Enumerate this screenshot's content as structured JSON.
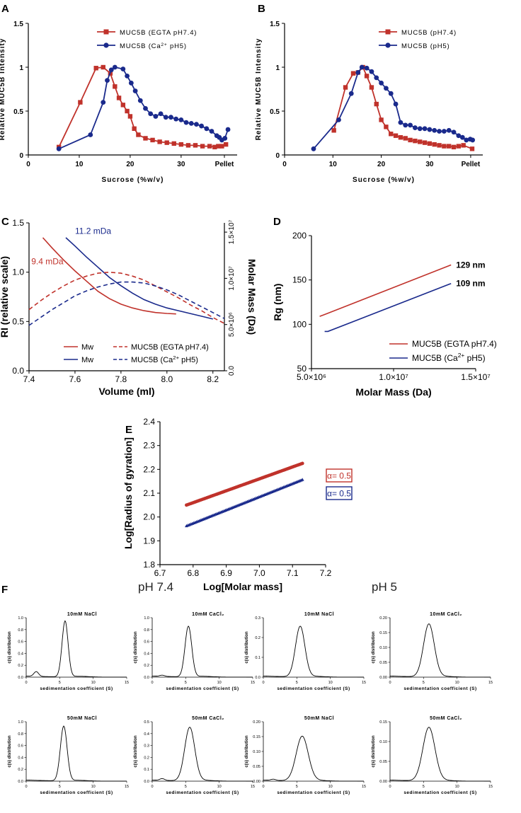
{
  "colors": {
    "red": "#c0322b",
    "blue": "#1a2a8c",
    "axis": "#000000"
  },
  "panel_f_headers": {
    "left": "pH 7.4",
    "right": "pH 5"
  },
  "chart_data": [
    {
      "id": "A",
      "panel_label": "A",
      "type": "line",
      "title": "",
      "xlabel": "Sucrose (%w/v)",
      "ylabel": "Relative MUC5B Intensity",
      "xlim": [
        0,
        41
      ],
      "ylim": [
        0,
        1.5
      ],
      "xticks": [
        0,
        10,
        20,
        30
      ],
      "xtick_extra_label": "Pellet",
      "xtick_extra_at": 38.5,
      "yticks": [
        0,
        0.5,
        1.0,
        1.5
      ],
      "legend_position": "top-center",
      "series": [
        {
          "name": "MUC5B (EGTA pH7.4)",
          "color": "red",
          "marker": "square",
          "x": [
            6,
            10.2,
            13.3,
            14.7,
            16.1,
            17,
            17.8,
            18.6,
            19.4,
            20,
            20.8,
            21.6,
            23,
            24.4,
            25.8,
            27.2,
            28.6,
            30,
            31.4,
            32.8,
            34.2,
            35.6,
            36.6,
            37.3,
            38,
            38.8
          ],
          "y": [
            0.09,
            0.6,
            0.99,
            1.0,
            0.93,
            0.78,
            0.65,
            0.57,
            0.5,
            0.44,
            0.3,
            0.23,
            0.19,
            0.17,
            0.15,
            0.14,
            0.13,
            0.12,
            0.11,
            0.11,
            0.1,
            0.1,
            0.09,
            0.1,
            0.1,
            0.12
          ]
        },
        {
          "name": "MUC5B (Ca2+ pH5)",
          "color": "blue",
          "marker": "circle",
          "x": [
            6,
            12.2,
            14.7,
            15.5,
            16.3,
            17,
            18.6,
            19.4,
            20.2,
            21,
            22,
            23,
            24,
            25,
            26,
            27,
            28,
            29,
            30,
            31,
            32,
            33,
            34,
            35,
            36,
            37,
            37.5,
            38,
            38.6,
            39.2
          ],
          "y": [
            0.07,
            0.23,
            0.6,
            0.85,
            0.97,
            1.0,
            0.98,
            0.9,
            0.82,
            0.73,
            0.62,
            0.53,
            0.47,
            0.44,
            0.47,
            0.43,
            0.43,
            0.41,
            0.4,
            0.37,
            0.36,
            0.35,
            0.33,
            0.3,
            0.27,
            0.22,
            0.2,
            0.17,
            0.19,
            0.29
          ]
        }
      ]
    },
    {
      "id": "B",
      "panel_label": "B",
      "type": "line",
      "title": "",
      "xlabel": "Sucrose (%w/v)",
      "ylabel": "Relative MUC5B Intensity",
      "xlim": [
        0,
        41
      ],
      "ylim": [
        0,
        1.5
      ],
      "xticks": [
        0,
        10,
        20,
        30
      ],
      "xtick_extra_label": "Pellet",
      "xtick_extra_at": 38.5,
      "yticks": [
        0,
        0.5,
        1.0,
        1.5
      ],
      "legend_position": "top-right",
      "series": [
        {
          "name": "MUC5B (pH7.4)",
          "color": "red",
          "marker": "square",
          "x": [
            10.2,
            12.6,
            14.2,
            15.2,
            16.2,
            17,
            18,
            19,
            20,
            21,
            22,
            23,
            24,
            25,
            26,
            27,
            28,
            29,
            30,
            31,
            32,
            33,
            34,
            35,
            36,
            37,
            38.8
          ],
          "y": [
            0.28,
            0.77,
            0.93,
            0.94,
            1.0,
            0.9,
            0.77,
            0.58,
            0.4,
            0.32,
            0.24,
            0.22,
            0.2,
            0.19,
            0.17,
            0.16,
            0.15,
            0.14,
            0.13,
            0.12,
            0.11,
            0.1,
            0.1,
            0.09,
            0.1,
            0.11,
            0.07
          ]
        },
        {
          "name": "MUC5B (pH5)",
          "color": "blue",
          "marker": "circle",
          "x": [
            6,
            11.2,
            13.8,
            15.2,
            16,
            17,
            18,
            19,
            20,
            21,
            22,
            23,
            24,
            25,
            26,
            27,
            28,
            29,
            30,
            31,
            32,
            33,
            34,
            35,
            36,
            36.8,
            37.6,
            38.4,
            38.9
          ],
          "y": [
            0.07,
            0.4,
            0.7,
            0.94,
            1.0,
            0.99,
            0.95,
            0.88,
            0.82,
            0.76,
            0.7,
            0.58,
            0.37,
            0.34,
            0.34,
            0.31,
            0.3,
            0.3,
            0.29,
            0.28,
            0.27,
            0.27,
            0.28,
            0.26,
            0.22,
            0.2,
            0.17,
            0.18,
            0.17
          ]
        }
      ]
    },
    {
      "id": "C",
      "panel_label": "C",
      "type": "line",
      "xlabel": "Volume (ml)",
      "ylabel": "RI (relative scale)",
      "y2label": "Molar Mass (Da)",
      "xlim": [
        7.4,
        8.25
      ],
      "ylim": [
        0,
        1.5
      ],
      "y2lim": [
        0,
        16000000
      ],
      "xticks": [
        7.4,
        7.6,
        7.8,
        8.0,
        8.2
      ],
      "xtick_labels": [
        "7.4",
        "7.6",
        "7.8",
        "8.0",
        "8.2"
      ],
      "yticks": [
        0,
        0.5,
        1.0,
        1.5
      ],
      "ytick_labels": [
        "0.0",
        "0.5",
        "1.0",
        "1.5"
      ],
      "y2ticks": [
        0,
        5000000,
        10000000,
        15000000
      ],
      "y2tick_labels": [
        "0.0",
        "5.0×10⁶",
        "1.0×10⁷",
        "1.5×10⁷"
      ],
      "legend_position": "bottom",
      "annotations": [
        {
          "text": "9.4 mDa",
          "color": "red",
          "x": 7.41,
          "y": 1.08
        },
        {
          "text": "11.2 mDa",
          "color": "blue",
          "x": 7.6,
          "y": 1.39
        }
      ],
      "series": [
        {
          "name": "Mw",
          "color": "red",
          "dash": false,
          "axis": "right",
          "x": [
            7.46,
            7.5,
            7.55,
            7.6,
            7.65,
            7.7,
            7.75,
            7.8,
            7.85,
            7.9,
            7.95,
            8.0,
            8.04
          ],
          "y": [
            14400000,
            13300000,
            12000000,
            10800000,
            9700000,
            8600000,
            7800000,
            7200000,
            6800000,
            6500000,
            6300000,
            6200000,
            6150000
          ]
        },
        {
          "name": "Mw",
          "color": "blue",
          "dash": false,
          "axis": "right",
          "x": [
            7.56,
            7.6,
            7.65,
            7.7,
            7.75,
            7.8,
            7.85,
            7.9,
            7.95,
            8.0,
            8.05,
            8.1,
            8.15,
            8.2
          ],
          "y": [
            14400000,
            13500000,
            12300000,
            11200000,
            10100000,
            9200000,
            8400000,
            7700000,
            7200000,
            6800000,
            6500000,
            6200000,
            5900000,
            5600000
          ]
        },
        {
          "name": "MUC5B (EGTA pH7.4)",
          "color": "red",
          "dash": true,
          "axis": "left",
          "x": [
            7.4,
            7.45,
            7.5,
            7.55,
            7.6,
            7.65,
            7.7,
            7.75,
            7.8,
            7.85,
            7.9,
            7.95,
            8.0,
            8.05,
            8.1,
            8.15,
            8.2,
            8.25
          ],
          "y": [
            0.62,
            0.71,
            0.79,
            0.86,
            0.92,
            0.96,
            0.99,
            1.0,
            0.99,
            0.96,
            0.92,
            0.86,
            0.8,
            0.74,
            0.67,
            0.61,
            0.54,
            0.48
          ]
        },
        {
          "name": "MUC5B (Ca2+ pH5)",
          "color": "blue",
          "dash": true,
          "axis": "left",
          "x": [
            7.4,
            7.45,
            7.5,
            7.55,
            7.6,
            7.65,
            7.7,
            7.75,
            7.8,
            7.85,
            7.9,
            7.95,
            8.0,
            8.05,
            8.1,
            8.15,
            8.2,
            8.25
          ],
          "y": [
            0.46,
            0.54,
            0.62,
            0.69,
            0.76,
            0.81,
            0.85,
            0.88,
            0.9,
            0.9,
            0.89,
            0.86,
            0.82,
            0.77,
            0.71,
            0.65,
            0.59,
            0.53
          ]
        }
      ]
    },
    {
      "id": "D",
      "panel_label": "D",
      "type": "line",
      "xlabel": "Molar Mass (Da)",
      "ylabel": "Rg (nm)",
      "xlim": [
        5000000,
        15000000
      ],
      "ylim": [
        50,
        200
      ],
      "xticks": [
        5000000,
        10000000,
        15000000
      ],
      "xtick_labels": [
        "5.0×10⁶",
        "1.0×10⁷",
        "1.5×10⁷"
      ],
      "yticks": [
        50,
        100,
        150,
        200
      ],
      "legend_position": "bottom-right",
      "annotations": [
        {
          "text": "129 nm",
          "color": "black",
          "series": 0
        },
        {
          "text": "109 nm",
          "color": "black",
          "series": 1
        }
      ],
      "series": [
        {
          "name": "MUC5B (EGTA pH7.4)",
          "color": "red",
          "x": [
            5500000,
            5800000,
            13500000
          ],
          "y": [
            109,
            111,
            167
          ]
        },
        {
          "name": "MUC5B (Ca2+ pH5)",
          "color": "blue",
          "x": [
            5800000,
            6000000,
            13500000
          ],
          "y": [
            92,
            92,
            146
          ]
        }
      ]
    },
    {
      "id": "E",
      "panel_label": "E",
      "type": "scatter",
      "xlabel": "Log[Molar mass]",
      "ylabel": "Log[Radius of gyration]",
      "xlim": [
        6.7,
        7.2
      ],
      "ylim": [
        1.8,
        2.4
      ],
      "xticks": [
        6.7,
        6.8,
        6.9,
        7.0,
        7.1,
        7.2
      ],
      "xtick_labels": [
        "6.7",
        "6.8",
        "6.9",
        "7.0",
        "7.1",
        "7.2"
      ],
      "yticks": [
        1.8,
        1.9,
        2.0,
        2.1,
        2.2,
        2.3,
        2.4
      ],
      "ytick_labels": [
        "1.8",
        "1.9",
        "2.0",
        "2.1",
        "2.2",
        "2.3",
        "2.4"
      ],
      "annotations": [
        {
          "text": "α= 0.5",
          "color": "red"
        },
        {
          "text": "α= 0.5",
          "color": "blue"
        }
      ],
      "series": [
        {
          "name": "MUC5B (EGTA pH7.4)",
          "color": "red",
          "x": [
            6.78,
            7.13
          ],
          "y": [
            2.05,
            2.225
          ]
        },
        {
          "name": "MUC5B (Ca2+ pH5)",
          "color": "blue",
          "x": [
            6.78,
            7.13
          ],
          "y": [
            1.963,
            2.157
          ]
        }
      ]
    }
  ],
  "sedimentation": {
    "xlabel": "sedimentation coefficient (S)",
    "ylabel": "c(s) distribution",
    "xlim": [
      0,
      15
    ],
    "xticks": [
      0,
      5,
      10,
      15
    ],
    "plots": [
      {
        "title": "10mM NaCl",
        "ymax": 1.0,
        "yticks": [
          "0.0",
          "0.2",
          "0.4",
          "0.6",
          "0.8",
          "1.0"
        ],
        "peak_x": 5.8,
        "peak_y": 0.94,
        "width": 0.45,
        "baseline_bump": 0.08
      },
      {
        "title": "10mM CaCl₂",
        "ymax": 1.0,
        "yticks": [
          "0.0",
          "0.2",
          "0.4",
          "0.6",
          "0.8",
          "1.0"
        ],
        "peak_x": 5.4,
        "peak_y": 0.85,
        "width": 0.5,
        "baseline_bump": 0.02
      },
      {
        "title": "10mM NaCl",
        "ymax": 0.3,
        "yticks": [
          "0.0",
          "0.1",
          "0.2",
          "0.3"
        ],
        "peak_x": 5.5,
        "peak_y": 0.255,
        "width": 0.7,
        "baseline_bump": 0.0
      },
      {
        "title": "10mM CaCl₂",
        "ymax": 0.2,
        "yticks": [
          "0.00",
          "0.05",
          "0.10",
          "0.15",
          "0.20"
        ],
        "peak_x": 5.8,
        "peak_y": 0.178,
        "width": 0.8,
        "baseline_bump": 0.0
      },
      {
        "title": "50mM NaCl",
        "ymax": 1.0,
        "yticks": [
          "0.0",
          "0.2",
          "0.4",
          "0.6",
          "0.8",
          "1.0"
        ],
        "peak_x": 5.6,
        "peak_y": 0.92,
        "width": 0.5,
        "baseline_bump": 0.0
      },
      {
        "title": "50mM CaCl₂",
        "ymax": 0.5,
        "yticks": [
          "0.0",
          "0.1",
          "0.2",
          "0.3",
          "0.4",
          "0.5"
        ],
        "peak_x": 5.6,
        "peak_y": 0.45,
        "width": 0.75,
        "baseline_bump": 0.03
      },
      {
        "title": "50mM NaCl",
        "ymax": 0.2,
        "yticks": [
          "0.00",
          "0.05",
          "0.10",
          "0.15",
          "0.20"
        ],
        "peak_x": 5.8,
        "peak_y": 0.15,
        "width": 0.9,
        "baseline_bump": 0.02
      },
      {
        "title": "50mM CaCl₂",
        "ymax": 0.15,
        "yticks": [
          "0.00",
          "0.05",
          "0.10",
          "0.15"
        ],
        "peak_x": 5.8,
        "peak_y": 0.135,
        "width": 0.9,
        "baseline_bump": 0.0
      }
    ]
  }
}
